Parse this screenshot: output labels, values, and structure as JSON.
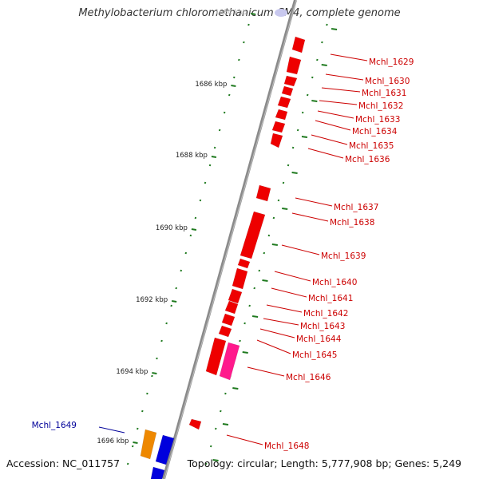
{
  "header": {
    "title": "Methylobacterium chloromethanicum CM4, complete genome"
  },
  "footer": {
    "accession": "Accession: NC_011757",
    "topology": "Topology: circular; Length: 5,777,908 bp; Genes: 5,249"
  },
  "colors": {
    "backbone": "#8c8c8c",
    "forward_gene": "#ee0000",
    "highlight_gene": "#ff1a8c",
    "orange_gene": "#ee8800",
    "blue_gene": "#0000dd",
    "red_label": "#cc0000",
    "blue_label": "#000099",
    "tick": "#1f7a1f"
  },
  "ticks": [
    {
      "label": "1684 kbp",
      "faded": true
    },
    {
      "label": "1686 kbp"
    },
    {
      "label": "1688 kbp"
    },
    {
      "label": "1690 kbp"
    },
    {
      "label": "1692 kbp"
    },
    {
      "label": "1694 kbp"
    },
    {
      "label": "1696 kbp"
    }
  ],
  "genes": [
    {
      "label": "Mchl_1629",
      "strand": "forward",
      "color": "red"
    },
    {
      "label": "Mchl_1630",
      "strand": "forward",
      "color": "red"
    },
    {
      "label": "Mchl_1631",
      "strand": "forward",
      "color": "red"
    },
    {
      "label": "Mchl_1632",
      "strand": "forward",
      "color": "red"
    },
    {
      "label": "Mchl_1633",
      "strand": "forward",
      "color": "red"
    },
    {
      "label": "Mchl_1634",
      "strand": "forward",
      "color": "red"
    },
    {
      "label": "Mchl_1635",
      "strand": "forward",
      "color": "red"
    },
    {
      "label": "Mchl_1636",
      "strand": "forward",
      "color": "red"
    },
    {
      "label": "Mchl_1637",
      "strand": "forward",
      "color": "red"
    },
    {
      "label": "Mchl_1638",
      "strand": "forward",
      "color": "red"
    },
    {
      "label": "Mchl_1639",
      "strand": "forward",
      "color": "red"
    },
    {
      "label": "Mchl_1640",
      "strand": "forward",
      "color": "red"
    },
    {
      "label": "Mchl_1641",
      "strand": "forward",
      "color": "red"
    },
    {
      "label": "Mchl_1642",
      "strand": "forward",
      "color": "red"
    },
    {
      "label": "Mchl_1643",
      "strand": "forward",
      "color": "red"
    },
    {
      "label": "Mchl_1644",
      "strand": "forward",
      "color": "red"
    },
    {
      "label": "Mchl_1645",
      "strand": "forward",
      "color": "red"
    },
    {
      "label": "Mchl_1646",
      "strand": "forward",
      "color": "pink"
    },
    {
      "label": "Mchl_1648",
      "strand": "forward",
      "color": "red"
    },
    {
      "label": "Mchl_1649",
      "strand": "reverse",
      "color": "orange"
    }
  ]
}
